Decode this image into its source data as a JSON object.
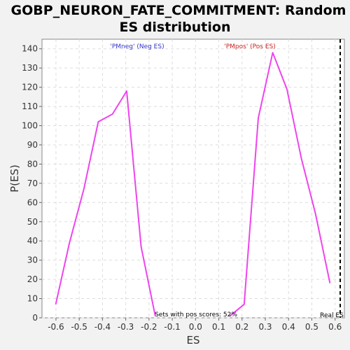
{
  "chart_data": {
    "type": "line",
    "title_line1": "GOBP_NEURON_FATE_COMMITMENT: Random",
    "title_line2": "ES distribution",
    "xlabel": "ES",
    "ylabel": "P(ES)",
    "xlim": [
      -0.66,
      0.64
    ],
    "ylim": [
      0,
      145
    ],
    "x_ticks": [
      -0.6,
      -0.5,
      -0.4,
      -0.3,
      -0.2,
      -0.1,
      0.0,
      0.1,
      0.2,
      0.3,
      0.4,
      0.5,
      0.6
    ],
    "x_tick_labels": [
      "-0.6",
      "-0.5",
      "-0.4",
      "-0.3",
      "-0.2",
      "-0.1",
      "0.0",
      "0.1",
      "0.2",
      "0.3",
      "0.4",
      "0.5",
      "0.6"
    ],
    "y_ticks": [
      0,
      10,
      20,
      30,
      40,
      50,
      60,
      70,
      80,
      90,
      100,
      110,
      120,
      130,
      140
    ],
    "grid": true,
    "series": [
      {
        "color": "#ee44ee",
        "x": [
          -0.601,
          -0.542,
          -0.48,
          -0.418,
          -0.357,
          -0.296,
          -0.234,
          -0.173
        ],
        "y": [
          7,
          39,
          67,
          102,
          106,
          118,
          37,
          1
        ]
      },
      {
        "color": "#ee44ee",
        "x": [
          0.148,
          0.209,
          0.27,
          0.332,
          0.393,
          0.455,
          0.516,
          0.578
        ],
        "y": [
          1,
          7,
          104,
          138,
          119,
          83,
          54,
          18
        ]
      }
    ],
    "real_es": {
      "x": 0.622,
      "label": "Real ES"
    },
    "annotations": {
      "neg": {
        "text": "'PMneg' (Neg ES)",
        "color": "#3333cc"
      },
      "pos": {
        "text": "'PMpos' (Pos ES)",
        "color": "#cc2222"
      },
      "sets": {
        "text": "Sets with pos scores: 52%",
        "color": "#000000"
      }
    }
  }
}
